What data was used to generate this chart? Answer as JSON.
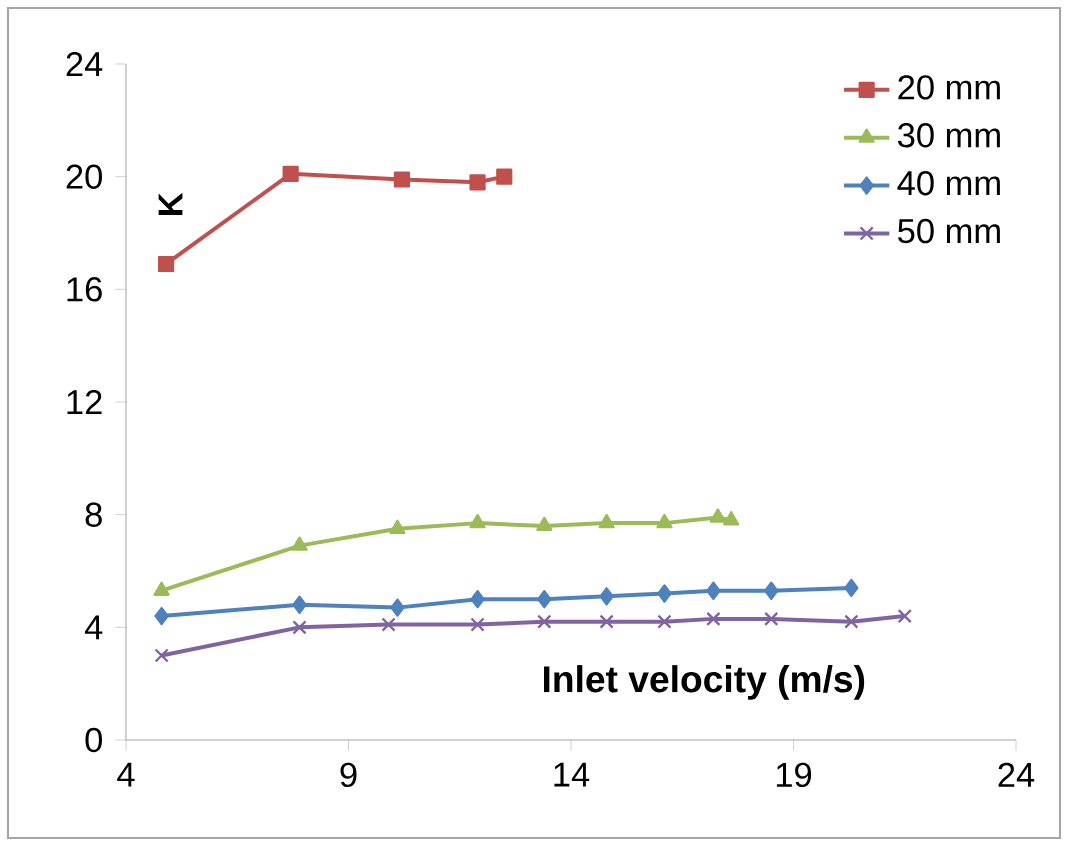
{
  "chart_data": {
    "type": "line",
    "xlabel": "Inlet velocity (m/s)",
    "ylabel": "K",
    "xlim": [
      4,
      24
    ],
    "xticks": [
      4,
      9,
      14,
      19,
      24
    ],
    "ylim": [
      0,
      24
    ],
    "yticks": [
      0,
      4,
      8,
      12,
      16,
      20,
      24
    ],
    "grid": false,
    "legend": "top right",
    "series": [
      {
        "name": "20 mm",
        "color": "#c0504d",
        "marker": "square",
        "x": [
          4.9,
          7.7,
          10.2,
          11.9,
          12.5
        ],
        "values": [
          16.9,
          20.1,
          19.9,
          19.8,
          20.0
        ]
      },
      {
        "name": "30 mm",
        "color": "#9bbb59",
        "marker": "triangle",
        "x": [
          4.8,
          7.9,
          10.1,
          11.9,
          13.4,
          14.8,
          16.1,
          17.3,
          17.6
        ],
        "values": [
          5.3,
          6.9,
          7.5,
          7.7,
          7.6,
          7.7,
          7.7,
          7.9,
          7.8
        ]
      },
      {
        "name": "40 mm",
        "color": "#4f81bd",
        "marker": "diamond",
        "x": [
          4.8,
          7.9,
          10.1,
          11.9,
          13.4,
          14.8,
          16.1,
          17.2,
          18.5,
          20.3
        ],
        "values": [
          4.4,
          4.8,
          4.7,
          5.0,
          5.0,
          5.1,
          5.2,
          5.3,
          5.3,
          5.4
        ]
      },
      {
        "name": "50 mm",
        "color": "#8064a2",
        "marker": "cross",
        "x": [
          4.8,
          7.9,
          9.9,
          11.9,
          13.4,
          14.8,
          16.1,
          17.2,
          18.5,
          20.3,
          21.5
        ],
        "values": [
          3.0,
          4.0,
          4.1,
          4.1,
          4.2,
          4.2,
          4.2,
          4.3,
          4.3,
          4.2,
          4.4
        ]
      }
    ]
  }
}
